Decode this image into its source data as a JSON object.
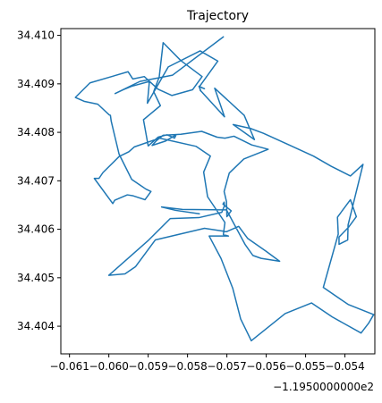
{
  "chart_data": {
    "type": "line",
    "title": "Trajectory",
    "xlabel": "",
    "ylabel": "",
    "x_offset_label": "−1.1950000000e2",
    "xlim": [
      -0.06122,
      -0.05324
    ],
    "ylim": [
      34.40343,
      34.41014
    ],
    "grid": false,
    "x_ticks": [
      -0.061,
      -0.06,
      -0.059,
      -0.058,
      -0.057,
      -0.056,
      -0.055,
      -0.054
    ],
    "x_tick_labels": [
      "−0.061",
      "−0.060",
      "−0.059",
      "−0.058",
      "−0.057",
      "−0.056",
      "−0.055",
      "−0.054"
    ],
    "y_ticks": [
      34.404,
      34.405,
      34.406,
      34.407,
      34.408,
      34.409,
      34.41
    ],
    "y_tick_labels": [
      "34.404",
      "34.405",
      "34.406",
      "34.407",
      "34.408",
      "34.409",
      "34.410"
    ],
    "series": [
      {
        "color": "#1f77b4",
        "x": [
          -0.05709,
          -0.05838,
          -0.05921,
          -0.05984,
          -0.05963,
          -0.05942,
          -0.05897,
          -0.05902,
          -0.05849,
          -0.05768,
          -0.05723,
          -0.0577,
          -0.05757,
          -0.05771,
          -0.05766,
          -0.05768,
          -0.05706,
          -0.05731,
          -0.05656,
          -0.0563,
          -0.05684,
          -0.0564,
          -0.05607,
          -0.05542,
          -0.0548,
          -0.05435,
          -0.05386,
          -0.05354,
          -0.05392,
          -0.05393,
          -0.05415,
          -0.05415,
          -0.05391,
          -0.05371,
          -0.05386,
          -0.05419,
          -0.05417,
          -0.05455,
          -0.05392,
          -0.05327,
          -0.0534,
          -0.05359,
          -0.05432,
          -0.05485,
          -0.05552,
          -0.05638,
          -0.05665,
          -0.05685,
          -0.05715,
          -0.05745,
          -0.05696,
          -0.05709,
          -0.05705,
          -0.05749,
          -0.05759,
          -0.05742,
          -0.05778,
          -0.05871,
          -0.05935,
          -0.05949,
          -0.05974,
          -0.06015,
          -0.06025,
          -0.06037,
          -0.0599,
          -0.05985,
          -0.05953,
          -0.05938,
          -0.05908,
          -0.05893,
          -0.05906,
          -0.05917,
          -0.05942,
          -0.05974,
          -0.05994,
          -0.05996,
          -0.05999,
          -0.06028,
          -0.06063,
          -0.06085,
          -0.06048,
          -0.05951,
          -0.05939,
          -0.0591,
          -0.05875,
          -0.0584,
          -0.05787,
          -0.05763,
          -0.05817,
          -0.05862,
          -0.05872,
          -0.05886,
          -0.05869,
          -0.05912,
          -0.059,
          -0.05875,
          -0.05852,
          -0.05833,
          -0.05829,
          -0.05856,
          -0.0589,
          -0.0588,
          -0.05862,
          -0.05817,
          -0.05764,
          -0.05725,
          -0.05705,
          -0.05682,
          -0.05637,
          -0.05595,
          -0.05657,
          -0.05694,
          -0.05707,
          -0.05701,
          -0.057,
          -0.05689,
          -0.0571,
          -0.05707,
          -0.05706,
          -0.05713,
          -0.05771,
          -0.05844,
          -0.05901,
          -0.06,
          -0.05959,
          -0.05932,
          -0.05882,
          -0.05757,
          -0.05701,
          -0.0567,
          -0.05647,
          -0.05601,
          -0.05566,
          -0.05613,
          -0.05634,
          -0.05654,
          -0.05701,
          -0.05813,
          -0.05866,
          -0.0583,
          -0.0577
        ],
        "y": [
          34.40997,
          34.40918,
          34.40905,
          34.4088,
          34.40888,
          34.40895,
          34.40905,
          34.4086,
          34.40935,
          34.40968,
          34.40947,
          34.40894,
          34.4089,
          34.40895,
          34.40885,
          34.40887,
          34.40832,
          34.40891,
          34.40835,
          34.40785,
          34.40816,
          34.40808,
          34.40798,
          34.40774,
          34.40751,
          34.4073,
          34.4071,
          34.40734,
          34.40609,
          34.40578,
          34.40569,
          34.40584,
          34.40604,
          34.40626,
          34.40661,
          34.40625,
          34.4059,
          34.4048,
          34.40445,
          34.40424,
          34.40406,
          34.40386,
          34.40419,
          34.40448,
          34.40426,
          34.4037,
          34.40415,
          34.40478,
          34.4054,
          34.40586,
          34.40586,
          34.40589,
          34.40614,
          34.40667,
          34.40718,
          34.40751,
          34.40771,
          34.40788,
          34.4077,
          34.4076,
          34.4075,
          34.40717,
          34.40705,
          34.40705,
          34.40653,
          34.4066,
          34.40671,
          34.40669,
          34.40661,
          34.40678,
          34.40683,
          34.40689,
          34.40703,
          34.40755,
          34.40823,
          34.40835,
          34.40836,
          34.40858,
          34.40864,
          34.40872,
          34.40902,
          34.40925,
          34.4091,
          34.40915,
          34.40889,
          34.40876,
          34.40888,
          34.40915,
          34.40948,
          34.40985,
          34.40914,
          34.40884,
          34.40855,
          34.40826,
          34.40772,
          34.4079,
          34.40795,
          34.40788,
          34.40795,
          34.40782,
          34.40773,
          34.40782,
          34.40794,
          34.40796,
          34.40802,
          34.4079,
          34.40788,
          34.40792,
          34.40774,
          34.40765,
          34.40745,
          34.40716,
          34.40678,
          34.40657,
          34.40626,
          34.40638,
          34.40652,
          34.40656,
          34.40649,
          34.40635,
          34.40624,
          34.40622,
          34.40576,
          34.40505,
          34.40508,
          34.40523,
          34.40578,
          34.40602,
          34.40595,
          34.40606,
          34.40581,
          34.40555,
          34.40534,
          34.4054,
          34.40546,
          34.40569,
          34.4064,
          34.40641,
          34.40646,
          34.40639,
          34.40632
        ]
      }
    ]
  }
}
